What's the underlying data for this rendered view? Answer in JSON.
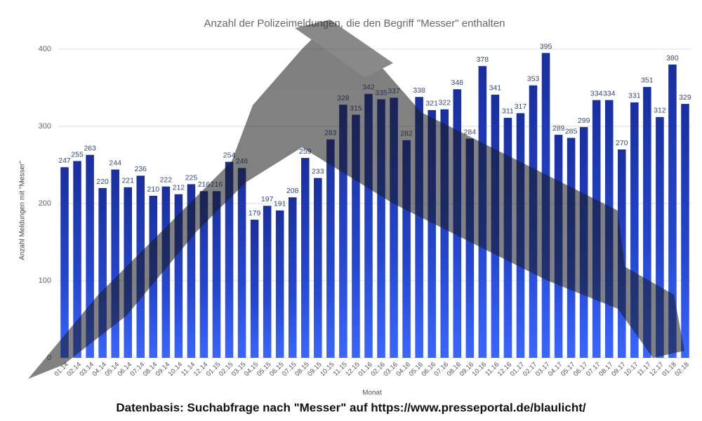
{
  "chart_data": {
    "type": "bar",
    "title": "Anzahl der Polizeimeldungen, die den Begriff \"Messer\" enthalten",
    "y_label": "Anzahl Meldungen mit \"Messer\"",
    "x_label": "Monat",
    "footer": "Datenbasis: Suchabfrage nach \"Messer\" auf https://www.presseportal.de/blaulicht/",
    "categories": [
      "01.14",
      "02.14",
      "03.14",
      "04.14",
      "05.14",
      "06.14",
      "07.14",
      "08.14",
      "09.14",
      "10.14",
      "11.14",
      "12.14",
      "01.15",
      "02.15",
      "03.15",
      "04.15",
      "05.15",
      "06.15",
      "07.15",
      "08.15",
      "09.15",
      "10.15",
      "11.15",
      "12.15",
      "01.16",
      "02.16",
      "03.16",
      "04.16",
      "05.16",
      "06.16",
      "07.16",
      "08.16",
      "09.16",
      "10.16",
      "11.16",
      "12.16",
      "01.17",
      "02.17",
      "03.17",
      "04.17",
      "05.17",
      "06.17",
      "07.17",
      "08.17",
      "09.17",
      "10.17",
      "11.17",
      "12.17",
      "01.18",
      "02.18"
    ],
    "values": [
      247,
      255,
      263,
      220,
      244,
      221,
      236,
      210,
      222,
      212,
      225,
      216,
      216,
      254,
      246,
      179,
      197,
      191,
      208,
      259,
      233,
      283,
      328,
      315,
      342,
      335,
      337,
      282,
      338,
      321,
      322,
      348,
      284,
      378,
      341,
      311,
      317,
      353,
      395,
      289,
      285,
      299,
      334,
      334,
      270,
      331,
      351,
      312,
      380,
      329
    ],
    "color": "#1f3fc4",
    "ylim": [
      0,
      400
    ],
    "yticks": [
      0,
      100,
      200,
      300,
      400
    ],
    "grid": true
  }
}
